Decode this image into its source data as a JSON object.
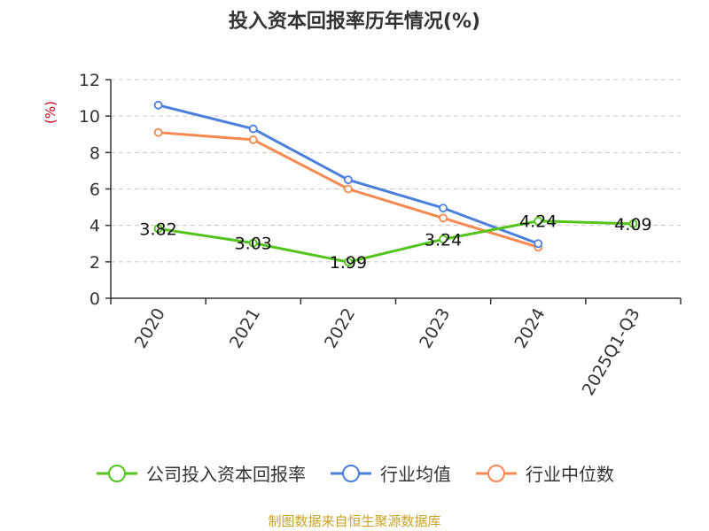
{
  "chart_data": {
    "type": "line",
    "title": "投入资本回报率历年情况(%)",
    "ylabel": "(%)",
    "ylabel_color": "#d0021b",
    "categories": [
      "2020",
      "2021",
      "2022",
      "2023",
      "2024",
      "2025Q1-Q3"
    ],
    "ylim": [
      0,
      12
    ],
    "yticks": [
      0,
      2,
      4,
      6,
      8,
      10,
      12
    ],
    "grid": true,
    "legend_position": "bottom",
    "series": [
      {
        "name": "公司投入资本回报率",
        "color": "#52c41a",
        "values": [
          3.82,
          3.03,
          1.99,
          3.24,
          4.24,
          4.09
        ],
        "labels": [
          "3.82",
          "3.03",
          "1.99",
          "3.24",
          "4.24",
          "4.09"
        ]
      },
      {
        "name": "行业均值",
        "color": "#4a7fdc",
        "values": [
          10.6,
          9.3,
          6.5,
          4.95,
          3.0,
          null
        ]
      },
      {
        "name": "行业中位数",
        "color": "#f5894f",
        "values": [
          9.1,
          8.7,
          6.0,
          4.4,
          2.8,
          null
        ]
      }
    ]
  },
  "footer": {
    "source": "制图数据来自恒生聚源数据库"
  }
}
